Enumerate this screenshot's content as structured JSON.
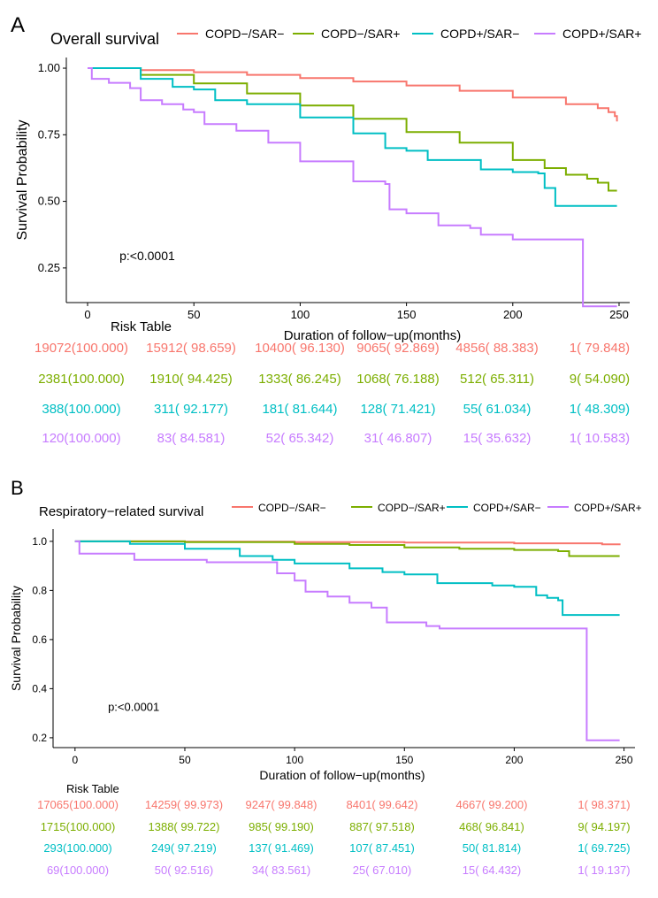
{
  "colors": {
    "copd_neg_sar_neg": "#F8766D",
    "copd_neg_sar_pos": "#7CAE00",
    "copd_pos_sar_neg": "#00BFC4",
    "copd_pos_sar_pos": "#C77CFF",
    "text": "#000000",
    "axis": "#000000"
  },
  "chart_data": [
    {
      "type": "line",
      "panel_letter": "A",
      "title": "Overall survival",
      "xlabel": "Duration of follow−up(months)",
      "ylabel": "Survival Probability",
      "xlim": [
        -10,
        255
      ],
      "ylim": [
        0.12,
        1.04
      ],
      "x_ticks": [
        0,
        50,
        100,
        150,
        200,
        250
      ],
      "x_tick_labels": [
        "0",
        "50",
        "100",
        "150",
        "200",
        "250"
      ],
      "y_ticks": [
        0.25,
        0.5,
        0.75,
        1.0
      ],
      "y_tick_labels": [
        "0.25",
        "0.50",
        "0.75",
        "1.00"
      ],
      "grid": false,
      "legend_position": "top",
      "pvalue_text": "p:<0.0001",
      "pvalue_at": [
        15,
        0.28
      ],
      "series": [
        {
          "name": "COPD−/SAR−",
          "color_key": "copd_neg_sar_neg",
          "x": [
            0,
            25,
            50,
            75,
            100,
            125,
            150,
            175,
            200,
            225,
            240,
            245,
            248,
            249
          ],
          "y": [
            1.0,
            0.993,
            0.985,
            0.975,
            0.963,
            0.95,
            0.935,
            0.915,
            0.89,
            0.865,
            0.85,
            0.835,
            0.82,
            0.8
          ]
        },
        {
          "name": "COPD−/SAR+",
          "color_key": "copd_neg_sar_pos",
          "x": [
            0,
            25,
            50,
            75,
            100,
            125,
            150,
            175,
            200,
            215,
            225,
            235,
            240,
            245,
            249
          ],
          "y": [
            1.0,
            0.975,
            0.943,
            0.905,
            0.86,
            0.81,
            0.76,
            0.72,
            0.655,
            0.625,
            0.6,
            0.585,
            0.57,
            0.54,
            0.54
          ]
        },
        {
          "name": "COPD+/SAR−",
          "color_key": "copd_pos_sar_neg",
          "x": [
            0,
            25,
            40,
            50,
            60,
            75,
            100,
            125,
            140,
            150,
            160,
            175,
            185,
            200,
            212,
            215,
            220,
            249
          ],
          "y": [
            1.0,
            0.96,
            0.93,
            0.92,
            0.88,
            0.865,
            0.815,
            0.755,
            0.7,
            0.69,
            0.655,
            0.655,
            0.62,
            0.61,
            0.605,
            0.55,
            0.483,
            0.483
          ]
        },
        {
          "name": "COPD+/SAR+",
          "color_key": "copd_pos_sar_pos",
          "x": [
            0,
            2,
            10,
            20,
            25,
            35,
            45,
            50,
            55,
            70,
            85,
            100,
            125,
            140,
            142,
            150,
            165,
            180,
            185,
            200,
            225,
            232,
            233,
            249
          ],
          "y": [
            1.0,
            0.96,
            0.945,
            0.925,
            0.88,
            0.865,
            0.845,
            0.835,
            0.79,
            0.765,
            0.72,
            0.65,
            0.575,
            0.565,
            0.47,
            0.455,
            0.41,
            0.4,
            0.375,
            0.357,
            0.357,
            0.357,
            0.106,
            0.106
          ]
        }
      ],
      "risk_table": {
        "title": "Risk Table",
        "rows": [
          {
            "color_key": "copd_neg_sar_neg",
            "cells": [
              "19072(100.000)",
              "15912( 98.659)",
              "10400( 96.130)",
              "9065( 92.869)",
              "4856( 88.383)",
              "1( 79.848)"
            ]
          },
          {
            "color_key": "copd_neg_sar_pos",
            "cells": [
              "2381(100.000)",
              "1910( 94.425)",
              "1333( 86.245)",
              "1068( 76.188)",
              "512( 65.311)",
              "9( 54.090)"
            ]
          },
          {
            "color_key": "copd_pos_sar_neg",
            "cells": [
              "388(100.000)",
              "311( 92.177)",
              "181( 81.644)",
              "128( 71.421)",
              "55( 61.034)",
              "1( 48.309)"
            ]
          },
          {
            "color_key": "copd_pos_sar_pos",
            "cells": [
              "120(100.000)",
              "83( 84.581)",
              "52( 65.342)",
              "31( 46.807)",
              "15( 35.632)",
              "1( 10.583)"
            ]
          }
        ]
      }
    },
    {
      "type": "line",
      "panel_letter": "B",
      "title": "Respiratory−related survival",
      "xlabel": "Duration of follow−up(months)",
      "ylabel": "Survival Probability",
      "xlim": [
        -10,
        255
      ],
      "ylim": [
        0.16,
        1.05
      ],
      "x_ticks": [
        0,
        50,
        100,
        150,
        200,
        250
      ],
      "x_tick_labels": [
        "0",
        "50",
        "100",
        "150",
        "200",
        "250"
      ],
      "y_ticks": [
        0.2,
        0.4,
        0.6,
        0.8,
        1.0
      ],
      "y_tick_labels": [
        "0.2",
        "0.4",
        "0.6",
        "0.8",
        "1.0"
      ],
      "grid": false,
      "legend_position": "top",
      "pvalue_text": "p:<0.0001",
      "pvalue_at": [
        15,
        0.31
      ],
      "series": [
        {
          "name": "COPD−/SAR−",
          "color_key": "copd_neg_sar_neg",
          "x": [
            0,
            50,
            100,
            150,
            200,
            240,
            248
          ],
          "y": [
            1.0,
            0.999,
            0.997,
            0.995,
            0.992,
            0.988,
            0.984
          ]
        },
        {
          "name": "COPD−/SAR+",
          "color_key": "copd_neg_sar_pos",
          "x": [
            0,
            50,
            100,
            125,
            150,
            175,
            200,
            220,
            225,
            240,
            248
          ],
          "y": [
            1.0,
            0.997,
            0.99,
            0.985,
            0.975,
            0.97,
            0.965,
            0.96,
            0.94,
            0.94,
            0.94
          ]
        },
        {
          "name": "COPD+/SAR−",
          "color_key": "copd_pos_sar_neg",
          "x": [
            0,
            25,
            50,
            75,
            90,
            100,
            125,
            140,
            150,
            165,
            175,
            190,
            200,
            210,
            215,
            220,
            222,
            248
          ],
          "y": [
            1.0,
            0.99,
            0.97,
            0.94,
            0.925,
            0.91,
            0.89,
            0.875,
            0.865,
            0.83,
            0.83,
            0.82,
            0.815,
            0.78,
            0.77,
            0.76,
            0.7,
            0.7
          ]
        },
        {
          "name": "COPD+/SAR+",
          "color_key": "copd_pos_sar_pos",
          "x": [
            0,
            2,
            25,
            27,
            60,
            90,
            92,
            100,
            105,
            115,
            125,
            135,
            142,
            150,
            160,
            166,
            200,
            232,
            233,
            248
          ],
          "y": [
            1.0,
            0.95,
            0.95,
            0.925,
            0.915,
            0.915,
            0.87,
            0.84,
            0.795,
            0.775,
            0.75,
            0.73,
            0.67,
            0.67,
            0.655,
            0.645,
            0.645,
            0.645,
            0.19,
            0.19
          ]
        }
      ],
      "risk_table": {
        "title": "Risk Table",
        "rows": [
          {
            "color_key": "copd_neg_sar_neg",
            "cells": [
              "17065(100.000)",
              "14259( 99.973)",
              "9247( 99.848)",
              "8401( 99.642)",
              "4667( 99.200)",
              "1( 98.371)"
            ]
          },
          {
            "color_key": "copd_neg_sar_pos",
            "cells": [
              "1715(100.000)",
              "1388( 99.722)",
              "985( 99.190)",
              "887( 97.518)",
              "468( 96.841)",
              "9( 94.197)"
            ]
          },
          {
            "color_key": "copd_pos_sar_neg",
            "cells": [
              "293(100.000)",
              "249( 97.219)",
              "137( 91.469)",
              "107( 87.451)",
              "50( 81.814)",
              "1( 69.725)"
            ]
          },
          {
            "color_key": "copd_pos_sar_pos",
            "cells": [
              "69(100.000)",
              "50( 92.516)",
              "34( 83.561)",
              "25( 67.010)",
              "15( 64.432)",
              "1( 19.137)"
            ]
          }
        ]
      }
    }
  ]
}
